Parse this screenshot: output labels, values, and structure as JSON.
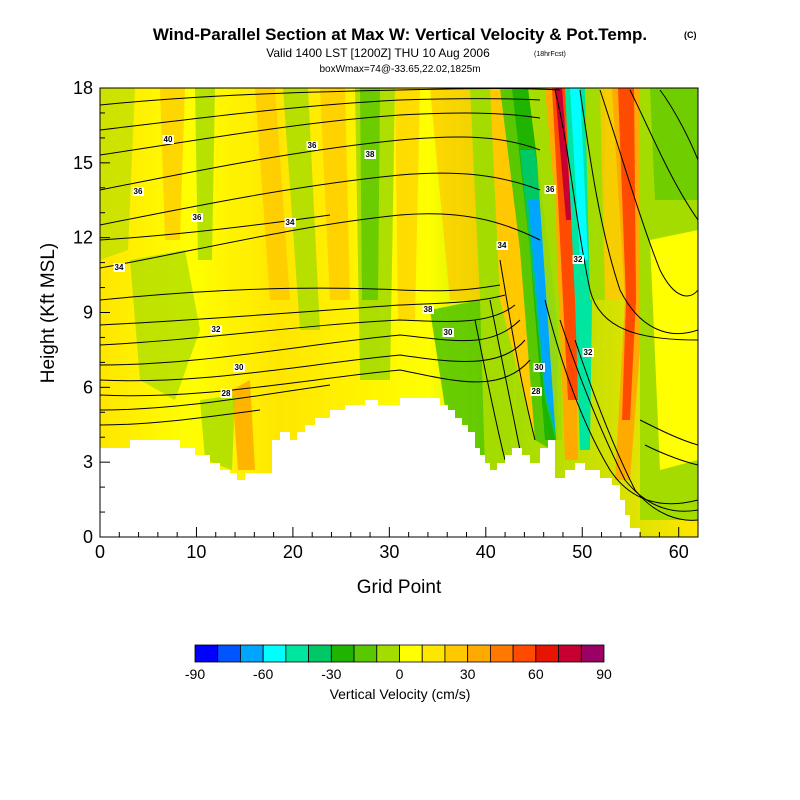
{
  "chart_data": {
    "type": "heatmap",
    "title": "Wind-Parallel Section at Max W: Vertical Velocity & Pot.Temp.",
    "title_mark": "(C)",
    "subtitle": "Valid 1400 LST [1200Z] THU 10 Aug 2006",
    "subtitle_note": "(18hrFcst)",
    "subtitle2": "boxWmax=74@-33.65,22.02,1825m",
    "xlabel": "Grid Point",
    "ylabel": "Height (Kft MSL)",
    "xlim": [
      0,
      62
    ],
    "ylim": [
      0,
      18
    ],
    "xticks": [
      "0",
      "10",
      "20",
      "30",
      "40",
      "50",
      "60"
    ],
    "yticks": [
      "0",
      "3",
      "6",
      "9",
      "12",
      "15",
      "18"
    ],
    "colorbar": {
      "label": "Vertical Velocity (cm/s)",
      "ticks": [
        "-90",
        "-60",
        "-30",
        "0",
        "30",
        "60",
        "90"
      ],
      "levels": [
        -90,
        -80,
        -70,
        -60,
        -50,
        -40,
        -30,
        -20,
        -10,
        0,
        10,
        20,
        30,
        40,
        50,
        60,
        70,
        80,
        90
      ],
      "colors": [
        "#0000ff",
        "#0055ff",
        "#00a5ff",
        "#00ffff",
        "#00e6a0",
        "#00c864",
        "#1eb400",
        "#5ac800",
        "#a5dc00",
        "#ffff00",
        "#ffe600",
        "#ffc800",
        "#ffaa00",
        "#ff7800",
        "#ff4b00",
        "#e61400",
        "#c80032",
        "#9b0064"
      ]
    },
    "contour_labels": [
      "40",
      "36",
      "36",
      "34",
      "36",
      "38",
      "32",
      "34",
      "36",
      "34",
      "30",
      "28",
      "38",
      "30",
      "32",
      "32",
      "30",
      "28"
    ]
  }
}
